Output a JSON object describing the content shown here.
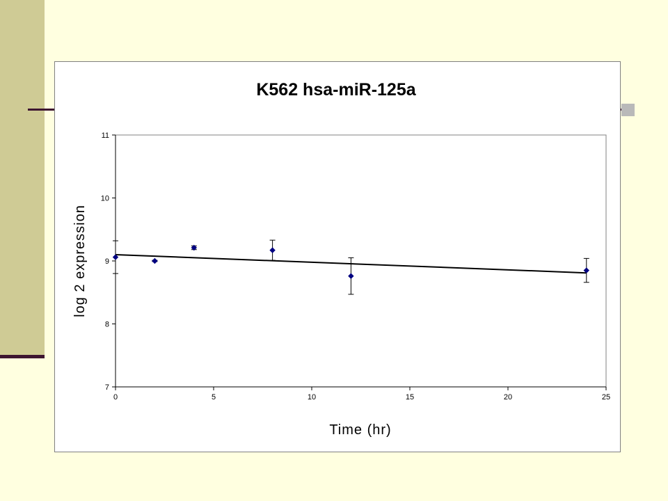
{
  "chart_data": {
    "type": "scatter",
    "title": "K562 hsa-miR-125a",
    "xlabel": "Time (hr)",
    "ylabel": "log 2 expression",
    "xlim": [
      0,
      25
    ],
    "ylim": [
      7,
      11
    ],
    "xticks": [
      "0",
      "5",
      "10",
      "15",
      "20",
      "25"
    ],
    "yticks": [
      "7",
      "8",
      "9",
      "10",
      "11"
    ],
    "grid": false,
    "legend": "none",
    "series": [
      {
        "points": [
          {
            "x": 0,
            "y": 9.06,
            "err": 0.26
          },
          {
            "x": 2,
            "y": 9.0,
            "err": 0.01
          },
          {
            "x": 4,
            "y": 9.21,
            "err": 0.03
          },
          {
            "x": 8,
            "y": 9.17,
            "err": 0.16
          },
          {
            "x": 12,
            "y": 8.76,
            "err": 0.29
          },
          {
            "x": 24,
            "y": 8.85,
            "err": 0.19
          }
        ],
        "color": "#000080"
      }
    ],
    "trendline": {
      "x": [
        0,
        24
      ],
      "y": [
        9.1,
        8.81
      ],
      "color": "#000000"
    }
  }
}
